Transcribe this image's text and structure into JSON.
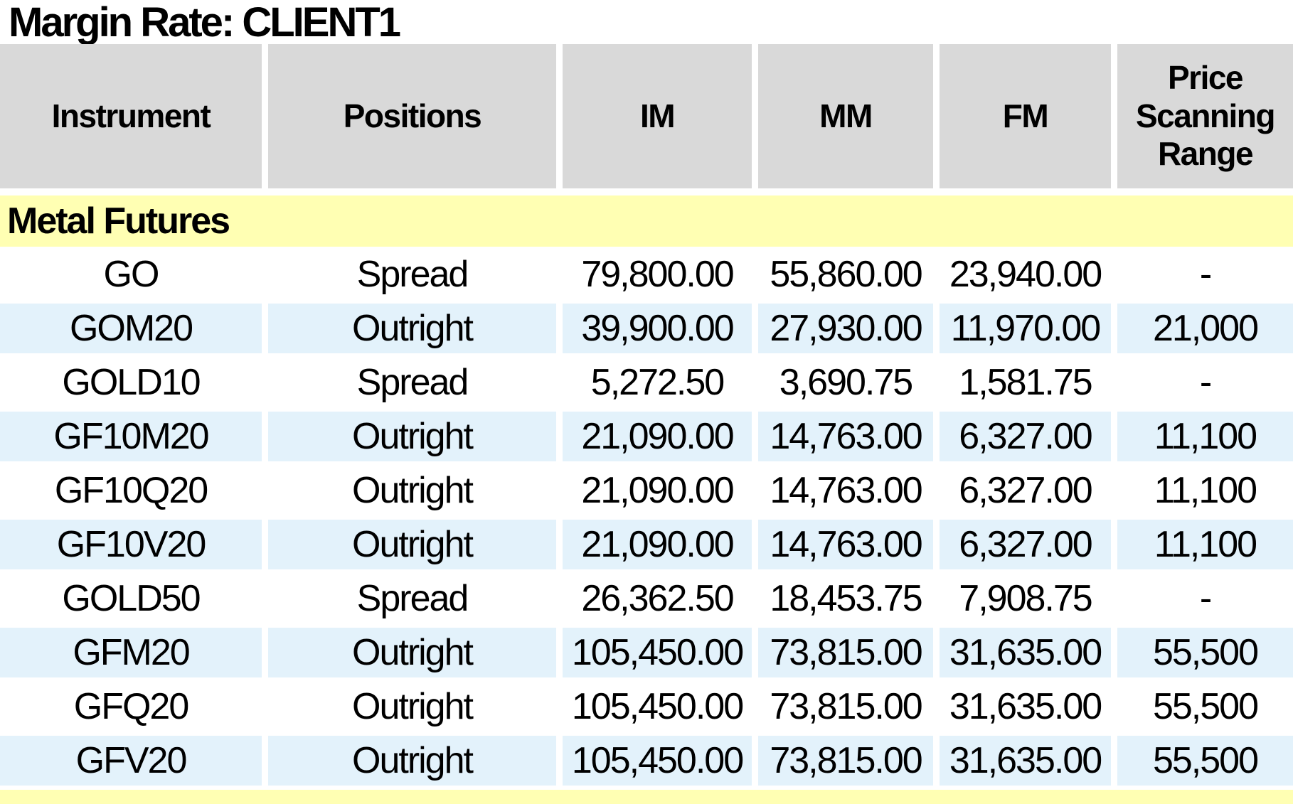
{
  "title": "Margin Rate: CLIENT1",
  "table": {
    "columns": [
      "Instrument",
      "Positions",
      "IM",
      "MM",
      "FM",
      "Price Scanning Range"
    ],
    "sections": [
      {
        "label": "Metal Futures",
        "rows": [
          {
            "instrument": "GO",
            "positions": "Spread",
            "im": "79,800.00",
            "mm": "55,860.00",
            "fm": "23,940.00",
            "price_scanning_range": "-"
          },
          {
            "instrument": "GOM20",
            "positions": "Outright",
            "im": "39,900.00",
            "mm": "27,930.00",
            "fm": "11,970.00",
            "price_scanning_range": "21,000"
          },
          {
            "instrument": "GOLD10",
            "positions": "Spread",
            "im": "5,272.50",
            "mm": "3,690.75",
            "fm": "1,581.75",
            "price_scanning_range": "-"
          },
          {
            "instrument": "GF10M20",
            "positions": "Outright",
            "im": "21,090.00",
            "mm": "14,763.00",
            "fm": "6,327.00",
            "price_scanning_range": "11,100"
          },
          {
            "instrument": "GF10Q20",
            "positions": "Outright",
            "im": "21,090.00",
            "mm": "14,763.00",
            "fm": "6,327.00",
            "price_scanning_range": "11,100"
          },
          {
            "instrument": "GF10V20",
            "positions": "Outright",
            "im": "21,090.00",
            "mm": "14,763.00",
            "fm": "6,327.00",
            "price_scanning_range": "11,100"
          },
          {
            "instrument": "GOLD50",
            "positions": "Spread",
            "im": "26,362.50",
            "mm": "18,453.75",
            "fm": "7,908.75",
            "price_scanning_range": "-"
          },
          {
            "instrument": "GFM20",
            "positions": "Outright",
            "im": "105,450.00",
            "mm": "73,815.00",
            "fm": "31,635.00",
            "price_scanning_range": "55,500"
          },
          {
            "instrument": "GFQ20",
            "positions": "Outright",
            "im": "105,450.00",
            "mm": "73,815.00",
            "fm": "31,635.00",
            "price_scanning_range": "55,500"
          },
          {
            "instrument": "GFV20",
            "positions": "Outright",
            "im": "105,450.00",
            "mm": "73,815.00",
            "fm": "31,635.00",
            "price_scanning_range": "55,500"
          }
        ]
      }
    ],
    "partial_next_section_visible": true
  },
  "colors": {
    "header_bg": "#d9d9d9",
    "section_bg": "#ffffb3",
    "row_alt_bg": "#e3f2fb",
    "text": "#000000"
  }
}
